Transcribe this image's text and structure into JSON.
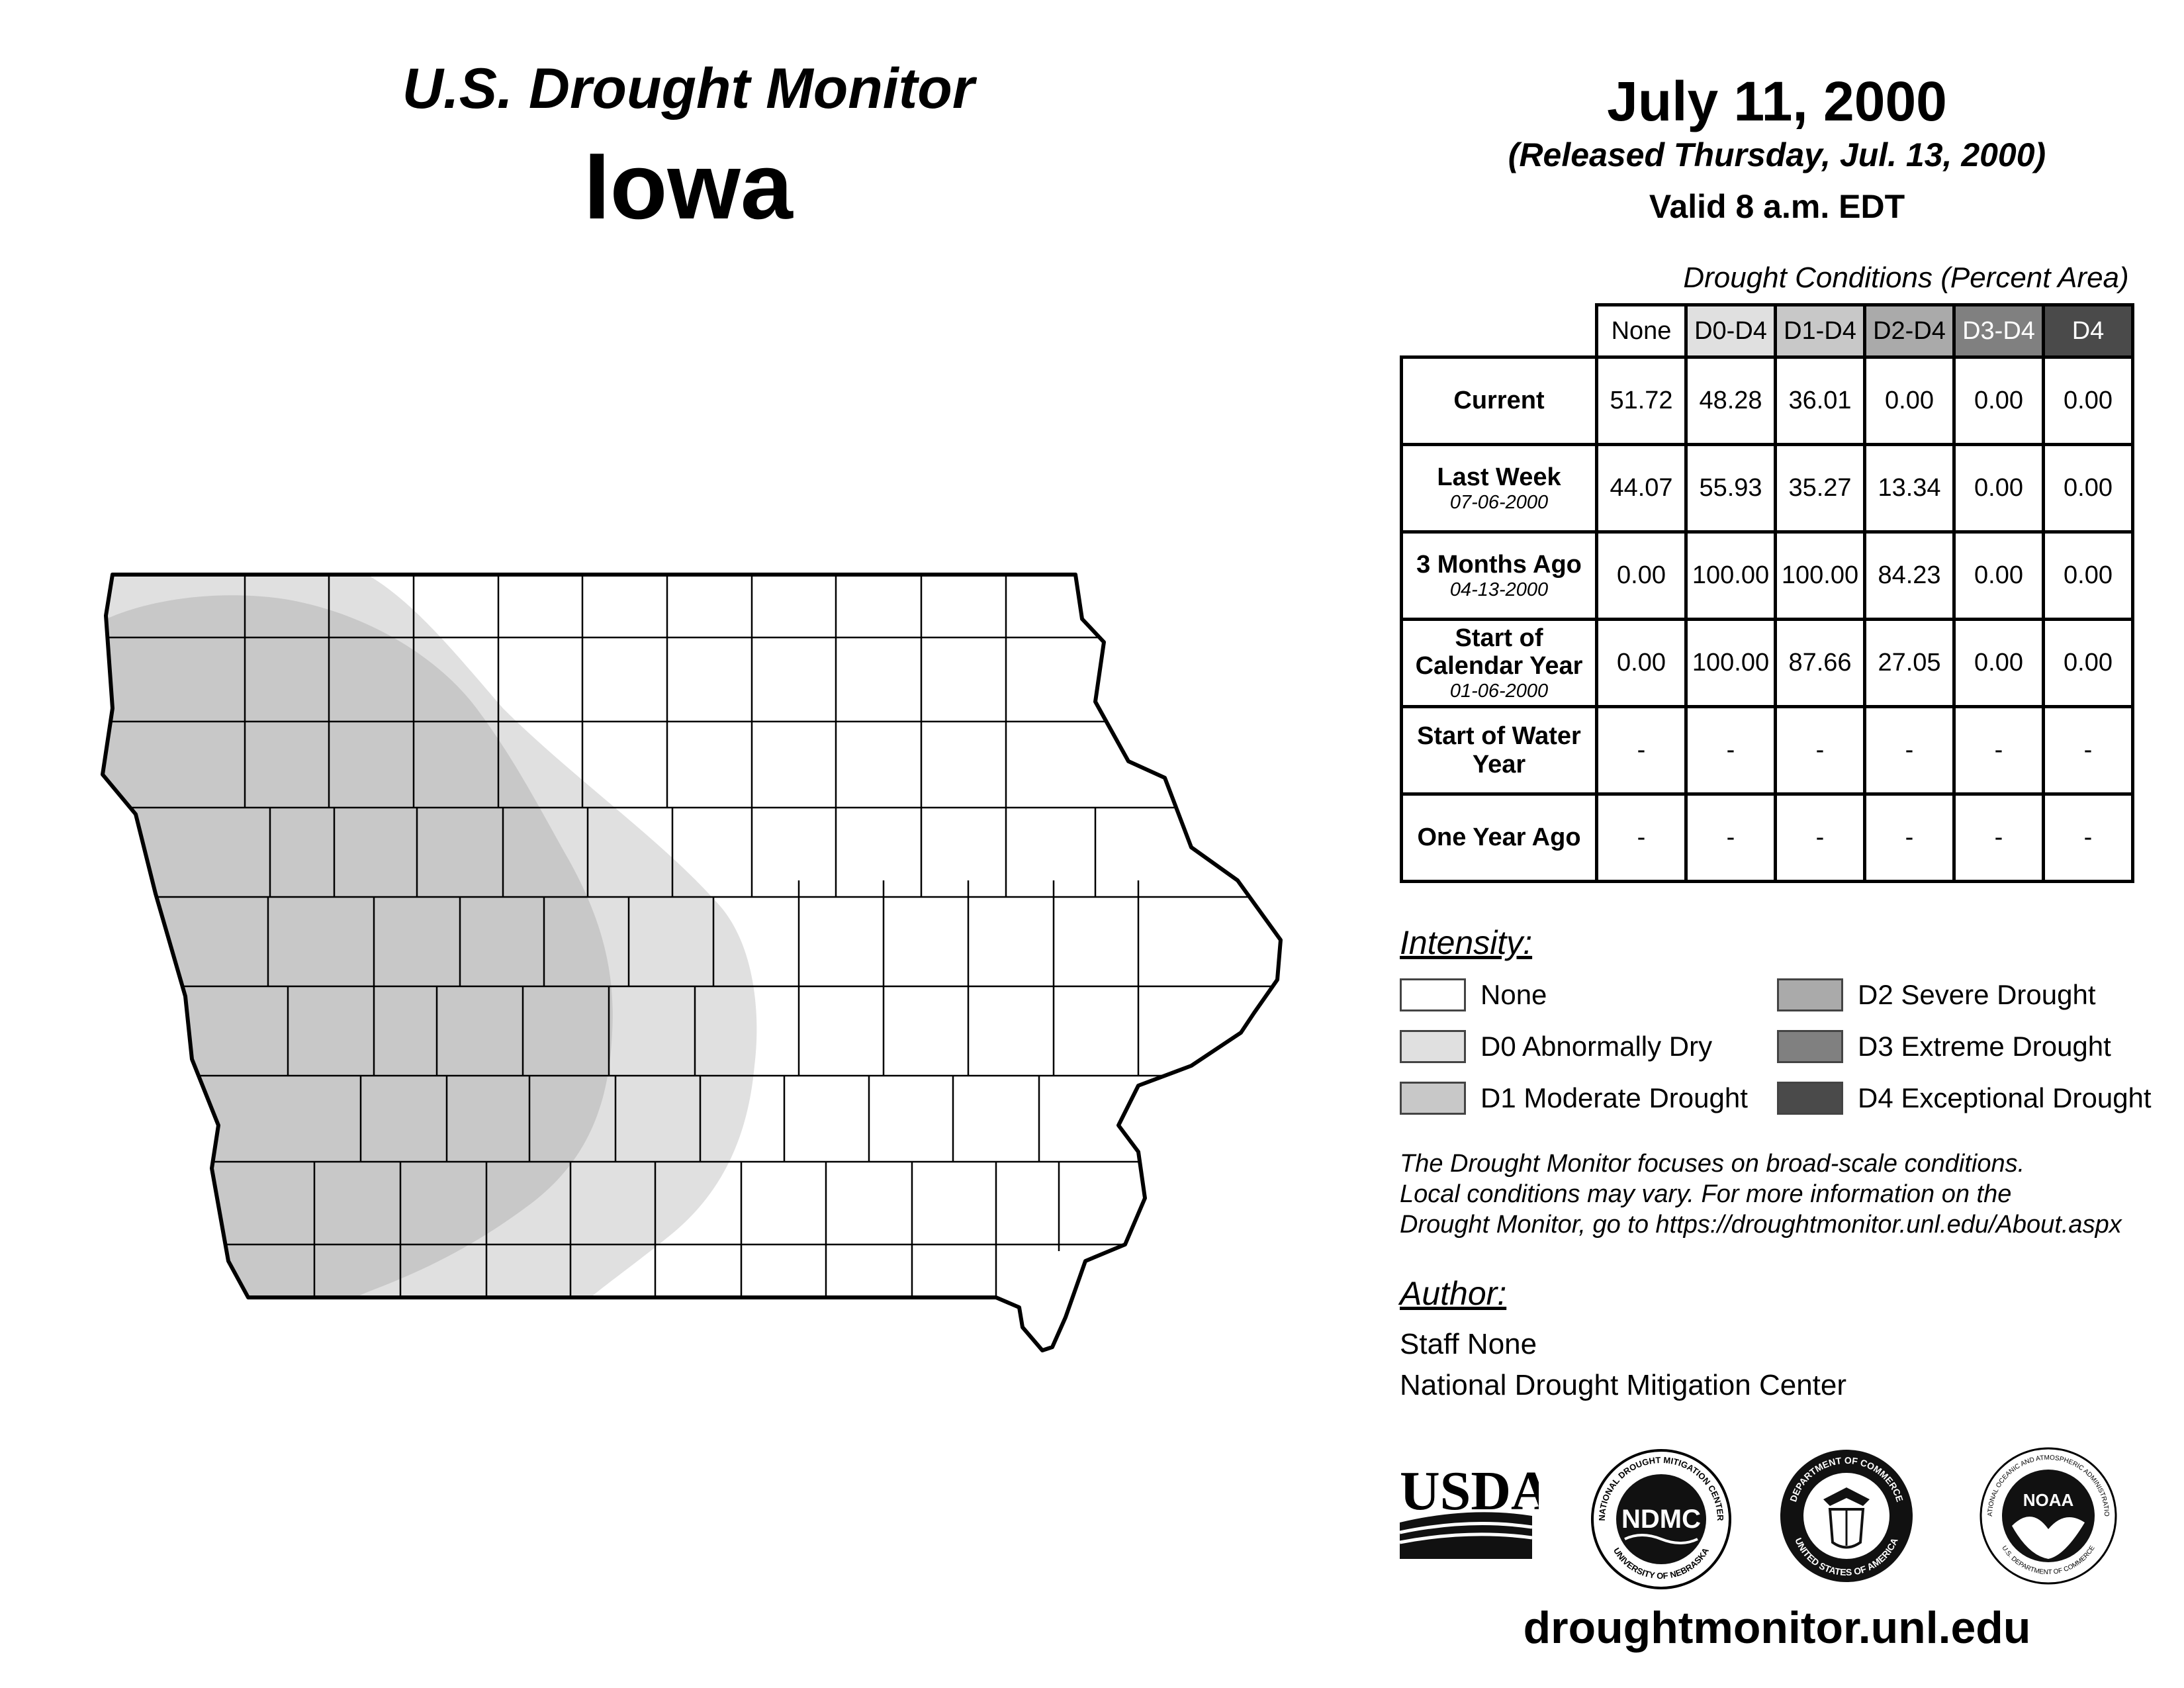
{
  "header": {
    "monitor_title": "U.S. Drought Monitor",
    "state": "Iowa",
    "date": "July 11, 2000",
    "released": "(Released Thursday, Jul. 13, 2000)",
    "valid": "Valid 8 a.m. EDT"
  },
  "table": {
    "caption": "Drought Conditions (Percent Area)",
    "columns": [
      {
        "label": "None",
        "color": "#ffffff",
        "text_color": "#000000"
      },
      {
        "label": "D0-D4",
        "color": "#e0e0e0",
        "text_color": "#000000"
      },
      {
        "label": "D1-D4",
        "color": "#c8c8c8",
        "text_color": "#000000"
      },
      {
        "label": "D2-D4",
        "color": "#aaaaaa",
        "text_color": "#000000"
      },
      {
        "label": "D3-D4",
        "color": "#808080",
        "text_color": "#ffffff"
      },
      {
        "label": "D4",
        "color": "#4a4a4a",
        "text_color": "#ffffff"
      }
    ],
    "rows": [
      {
        "label": "Current",
        "date": "",
        "values": [
          "51.72",
          "48.28",
          "36.01",
          "0.00",
          "0.00",
          "0.00"
        ]
      },
      {
        "label": "Last Week",
        "date": "07-06-2000",
        "values": [
          "44.07",
          "55.93",
          "35.27",
          "13.34",
          "0.00",
          "0.00"
        ]
      },
      {
        "label": "3 Months Ago",
        "date": "04-13-2000",
        "values": [
          "0.00",
          "100.00",
          "100.00",
          "84.23",
          "0.00",
          "0.00"
        ]
      },
      {
        "label": "Start of Calendar Year",
        "date": "01-06-2000",
        "values": [
          "0.00",
          "100.00",
          "87.66",
          "27.05",
          "0.00",
          "0.00"
        ]
      },
      {
        "label": "Start of Water Year",
        "date": "",
        "values": [
          "-",
          "-",
          "-",
          "-",
          "-",
          "-"
        ]
      },
      {
        "label": "One Year Ago",
        "date": "",
        "values": [
          "-",
          "-",
          "-",
          "-",
          "-",
          "-"
        ]
      }
    ]
  },
  "legend": {
    "title": "Intensity:",
    "items": [
      {
        "label": "None",
        "color": "#ffffff"
      },
      {
        "label": "D0 Abnormally Dry",
        "color": "#e0e0e0"
      },
      {
        "label": "D1 Moderate Drought",
        "color": "#c8c8c8"
      },
      {
        "label": "D2 Severe Drought",
        "color": "#aaaaaa"
      },
      {
        "label": "D3 Extreme Drought",
        "color": "#808080"
      },
      {
        "label": "D4 Exceptional Drought",
        "color": "#4a4a4a"
      }
    ]
  },
  "note": {
    "line1": "The Drought Monitor focuses on broad-scale conditions.",
    "line2": "Local conditions may vary. For more information on the",
    "line3": "Drought Monitor, go to https://droughtmonitor.unl.edu/About.aspx"
  },
  "author": {
    "title": "Author:",
    "name": "Staff None",
    "org": "National Drought Mitigation Center"
  },
  "logos": {
    "usda": "USDA",
    "ndmc": "NDMC",
    "ndmc_ring_top": "NATIONAL DROUGHT MITIGATION CENTER",
    "ndmc_ring_bottom": "UNIVERSITY OF NEBRASKA",
    "doc_ring_top": "DEPARTMENT OF COMMERCE",
    "doc_ring_bottom": "UNITED STATES OF AMERICA",
    "noaa": "NOAA",
    "noaa_ring_top": "NATIONAL OCEANIC AND ATMOSPHERIC ADMINISTRATION",
    "noaa_ring_bottom": "U.S. DEPARTMENT OF COMMERCE"
  },
  "map": {
    "colors": {
      "none": "#ffffff",
      "d0": "#e0e0e0",
      "d1": "#c8c8c8",
      "border": "#000000"
    }
  },
  "footer": {
    "website": "droughtmonitor.unl.edu"
  }
}
